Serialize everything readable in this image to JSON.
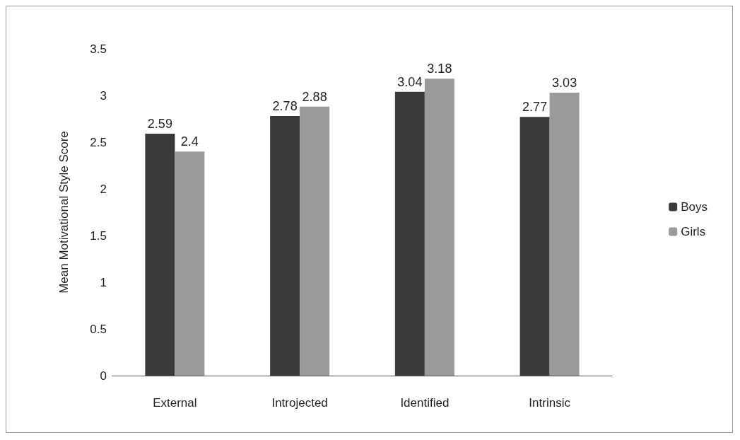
{
  "chart_data": {
    "type": "bar",
    "ylabel": "Mean Motivational Style Score",
    "categories": [
      "External",
      "Introjected",
      "Identified",
      "Intrinsic"
    ],
    "series": [
      {
        "name": "Boys",
        "color": "#3a3a3a",
        "values": [
          2.59,
          2.78,
          3.04,
          2.77
        ]
      },
      {
        "name": "Girls",
        "color": "#9a9a9a",
        "values": [
          2.4,
          2.88,
          3.18,
          3.03
        ]
      }
    ],
    "ylim": [
      0,
      3.5
    ],
    "yticks": [
      0,
      0.5,
      1,
      1.5,
      2,
      2.5,
      3,
      3.5
    ],
    "grid": false,
    "legend": "right",
    "data_labels": true
  }
}
